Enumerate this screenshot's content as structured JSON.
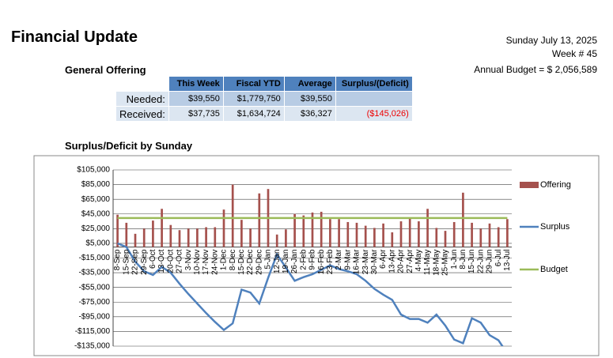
{
  "header": {
    "title": "Financial Update",
    "date": "Sunday July 13, 2025",
    "week": "Week # 45",
    "budget": "Annual Budget = $ 2,056,589",
    "section": "General Offering"
  },
  "table": {
    "columns": [
      "This Week",
      "Fiscal YTD",
      "Average",
      "Surplus/(Deficit)"
    ],
    "rows": [
      [
        "Needed:",
        "$39,550",
        "$1,779,750",
        "$39,550"
      ],
      [
        "Received:",
        "$37,735",
        "$1,634,724",
        "$36,327",
        "($145,026)"
      ]
    ]
  },
  "chart_data": {
    "type": "bar",
    "title": "Surplus/Deficit by Sunday",
    "categories": [
      "8-Sep",
      "15-Sep",
      "22-Sep",
      "29-Sep",
      "6-Oct",
      "13-Oct",
      "20-Oct",
      "27-Oct",
      "3-Nov",
      "10-Nov",
      "17-Nov",
      "24-Nov",
      "1-Dec",
      "8-Dec",
      "15-Dec",
      "22-Dec",
      "29-Dec",
      "5-Jan",
      "12-Jan",
      "19-Jan",
      "26-Jan",
      "2-Feb",
      "9-Feb",
      "16-Feb",
      "23-Feb",
      "2-Mar",
      "9-Mar",
      "16-Mar",
      "23-Mar",
      "30-Mar",
      "6-Apr",
      "13-Apr",
      "20-Apr",
      "27-Apr",
      "4-May",
      "11-May",
      "18-May",
      "25-May",
      "1-Jun",
      "8-Jun",
      "15-Jun",
      "22-Jun",
      "29-Jun",
      "6-Jul",
      "13-Jul"
    ],
    "series": [
      {
        "name": "Offering",
        "type": "bar",
        "color": "#a5514d",
        "values": [
          44000,
          33000,
          18000,
          25000,
          36000,
          52000,
          30000,
          23000,
          25000,
          25000,
          27000,
          27000,
          51000,
          85000,
          37000,
          25000,
          73000,
          79000,
          17000,
          24000,
          45000,
          43000,
          47000,
          48000,
          38000,
          38000,
          34000,
          33000,
          29000,
          26000,
          32000,
          20000,
          35000,
          39000,
          35000,
          52000,
          26000,
          22000,
          34000,
          74000,
          33000,
          25000,
          32000,
          27000,
          38000
        ]
      },
      {
        "name": "Surplus",
        "type": "line",
        "color": "#4f81bd",
        "values": [
          5000,
          0,
          -20000,
          -33000,
          -38000,
          -27000,
          -35000,
          -50000,
          -64000,
          -77000,
          -90000,
          -102000,
          -113000,
          -104000,
          -58000,
          -62000,
          -77000,
          -42000,
          -10000,
          -28000,
          -46000,
          -41000,
          -37000,
          -31000,
          -25000,
          -30000,
          -33000,
          -37000,
          -46000,
          -57000,
          -65000,
          -72000,
          -92000,
          -98000,
          -98000,
          -103000,
          -92000,
          -107000,
          -126000,
          -131000,
          -97000,
          -103000,
          -120000,
          -127000,
          -145026
        ]
      },
      {
        "name": "Budget",
        "type": "line",
        "color": "#9bbb59",
        "values": [
          39550,
          39550,
          39550,
          39550,
          39550,
          39550,
          39550,
          39550,
          39550,
          39550,
          39550,
          39550,
          39550,
          39550,
          39550,
          39550,
          39550,
          39550,
          39550,
          39550,
          39550,
          39550,
          39550,
          39550,
          39550,
          39550,
          39550,
          39550,
          39550,
          39550,
          39550,
          39550,
          39550,
          39550,
          39550,
          39550,
          39550,
          39550,
          39550,
          39550,
          39550,
          39550,
          39550,
          39550,
          39550
        ]
      }
    ],
    "ylim": [
      -135000,
      105000
    ],
    "yticks": [
      {
        "value": 105000,
        "label": "$105,000"
      },
      {
        "value": 85000,
        "label": "$85,000"
      },
      {
        "value": 65000,
        "label": "$65,000"
      },
      {
        "value": 45000,
        "label": "$45,000"
      },
      {
        "value": 25000,
        "label": "$25,000"
      },
      {
        "value": 5000,
        "label": "$5,000"
      },
      {
        "value": -15000,
        "label": "-$15,000"
      },
      {
        "value": -35000,
        "label": "-$35,000"
      },
      {
        "value": -55000,
        "label": "-$55,000"
      },
      {
        "value": -75000,
        "label": "-$75,000"
      },
      {
        "value": -95000,
        "label": "-$95,000"
      },
      {
        "value": -115000,
        "label": "-$115,000"
      },
      {
        "value": -135000,
        "label": "-$135,000"
      }
    ],
    "grid": true,
    "legend": "right"
  }
}
